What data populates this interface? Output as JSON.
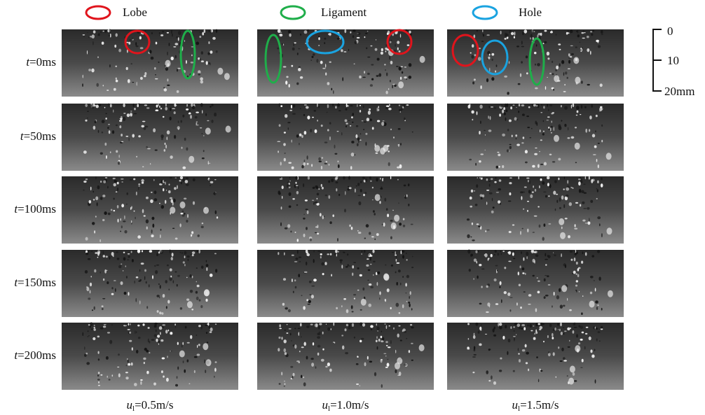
{
  "legend": {
    "items": [
      {
        "label": "Lobe",
        "color": "#e0141c"
      },
      {
        "label": "Ligament",
        "color": "#1fae4a"
      },
      {
        "label": "Hole",
        "color": "#1aa3e0"
      }
    ]
  },
  "rows": [
    {
      "symbol": "t",
      "text": "=0ms"
    },
    {
      "symbol": "t",
      "text": "=50ms"
    },
    {
      "symbol": "t",
      "text": "=100ms"
    },
    {
      "symbol": "t",
      "text": "=150ms"
    },
    {
      "symbol": "t",
      "text": "=200ms"
    }
  ],
  "columns": [
    {
      "symbol": "u",
      "subscript": "l",
      "text": "=0.5m/s"
    },
    {
      "symbol": "u",
      "subscript": "l",
      "text": "=1.0m/s"
    },
    {
      "symbol": "u",
      "subscript": "l",
      "text": "=1.5m/s"
    }
  ],
  "scale_bar": {
    "labels": [
      "0",
      "10",
      "20mm"
    ]
  }
}
